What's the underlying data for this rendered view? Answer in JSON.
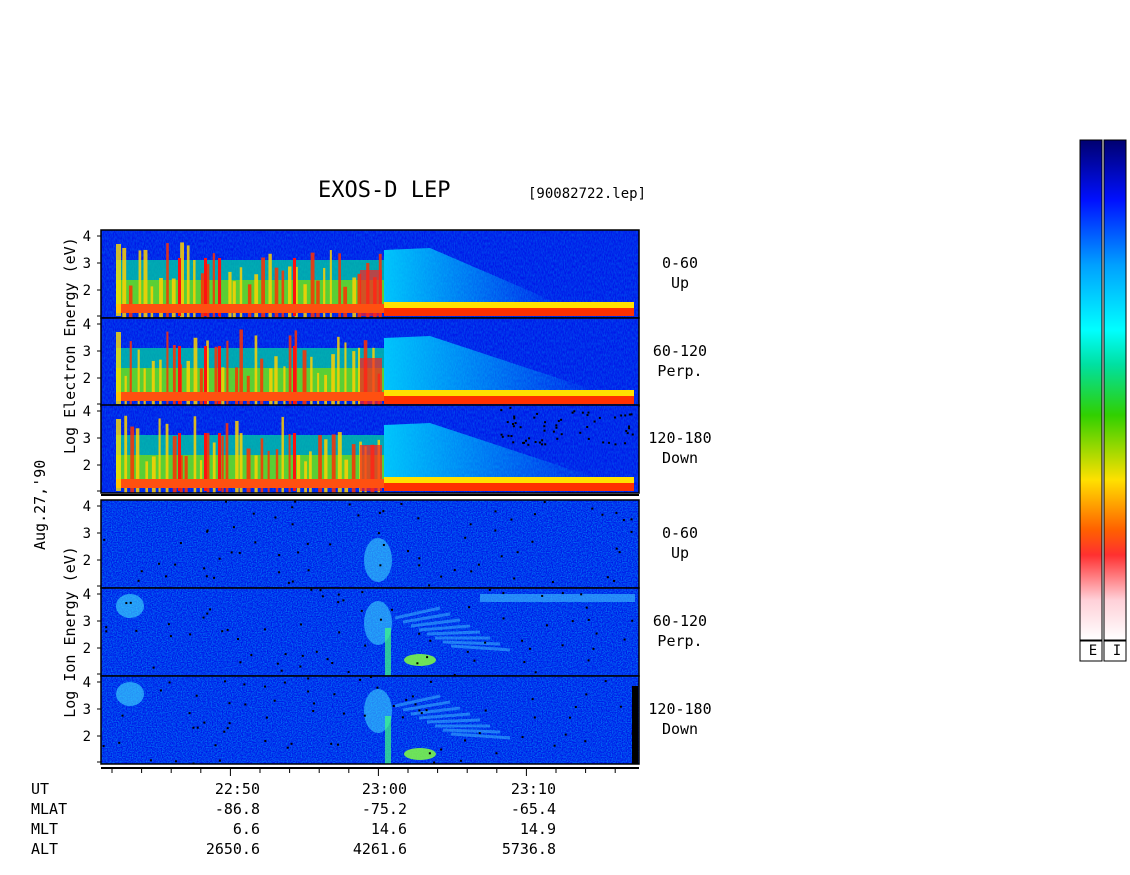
{
  "title": "EXOS-D LEP",
  "file_label": "[90082722.lep]",
  "date_label": "Aug.27,'90",
  "electron_label": "Log  Electron  Energy (eV)",
  "ion_label": "Log  Ion  Energy (eV)",
  "panels": [
    {
      "group": "electron",
      "range": "0-60",
      "dir": "Up"
    },
    {
      "group": "electron",
      "range": "60-120",
      "dir": "Perp."
    },
    {
      "group": "electron",
      "range": "120-180",
      "dir": "Down"
    },
    {
      "group": "ion",
      "range": "0-60",
      "dir": "Up"
    },
    {
      "group": "ion",
      "range": "60-120",
      "dir": "Perp."
    },
    {
      "group": "ion",
      "range": "120-180",
      "dir": "Down"
    }
  ],
  "y_ticks": [
    "4",
    "3",
    "2"
  ],
  "row_labels": [
    "UT",
    "MLAT",
    "MLT",
    "ALT"
  ],
  "time_ticks": [
    {
      "UT": "22:50",
      "MLAT": "-86.8",
      "MLT": "6.6",
      "ALT": "2650.6"
    },
    {
      "UT": "23:00",
      "MLAT": "-75.2",
      "MLT": "14.6",
      "ALT": "4261.6"
    },
    {
      "UT": "23:10",
      "MLAT": "-65.4",
      "MLT": "14.9",
      "ALT": "5736.8"
    }
  ],
  "colorbar_labels": [
    "E",
    "I"
  ],
  "colormap": [
    "#000070",
    "#0000c0",
    "#0030ff",
    "#00a0ff",
    "#00f0ff",
    "#00e0a0",
    "#00d000",
    "#80e000",
    "#e0e000",
    "#ffa000",
    "#ff4000",
    "#ff0000",
    "#ffa0a0",
    "#ffe0e0"
  ],
  "chart_data": {
    "type": "heatmap",
    "title": "EXOS-D LEP",
    "xlabel": "UT",
    "ylabel": "Log Energy (eV)",
    "ylim": [
      1,
      4.2
    ],
    "x_ticks": [
      "22:50",
      "23:00",
      "23:10"
    ],
    "series": [
      {
        "name": "Electron 0-60 Up"
      },
      {
        "name": "Electron 60-120 Perp."
      },
      {
        "name": "Electron 120-180 Down"
      },
      {
        "name": "Ion 0-60 Up"
      },
      {
        "name": "Ion 60-120 Perp."
      },
      {
        "name": "Ion 120-180 Down"
      }
    ]
  }
}
